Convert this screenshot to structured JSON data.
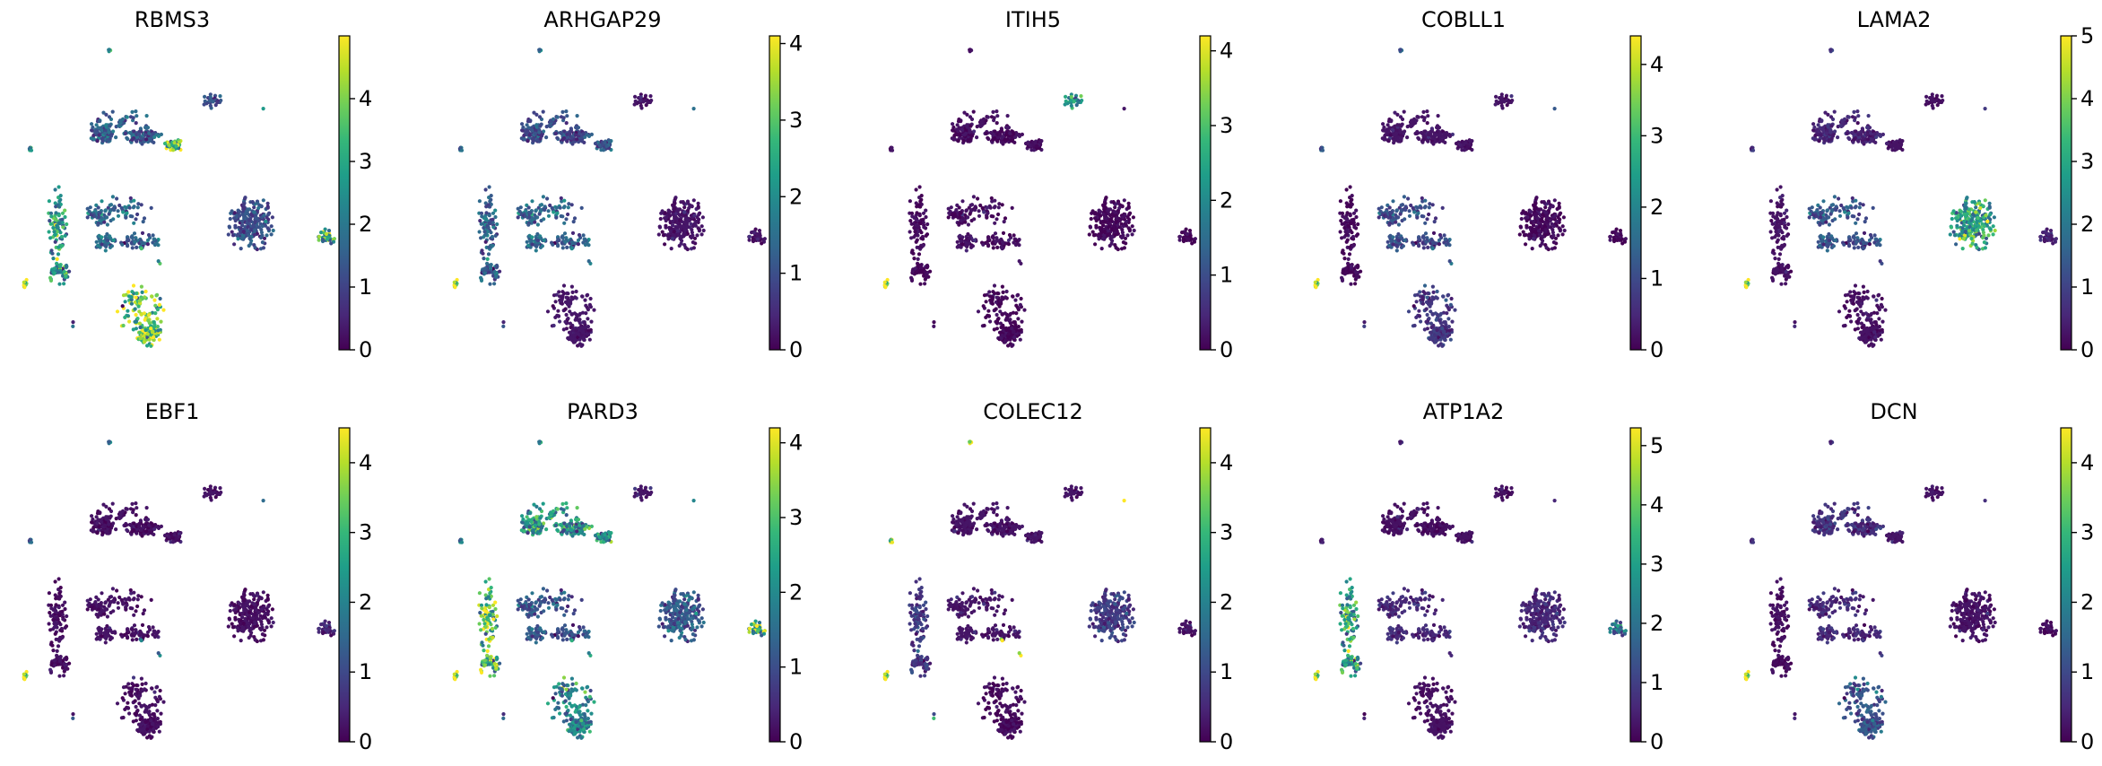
{
  "chart_data": {
    "type": "scatter",
    "description_kind": "umap_feature_plots",
    "colormap": "viridis",
    "colormap_stops": [
      "#440154",
      "#482878",
      "#3e4989",
      "#31688e",
      "#26828e",
      "#1f9e89",
      "#35b779",
      "#6ece58",
      "#b5de2b",
      "#fde725"
    ],
    "panels": [
      {
        "title": "RBMS3",
        "vmin": 0,
        "vmax": 5.0,
        "ticks": [
          "0",
          "1",
          "2",
          "3",
          "4"
        ],
        "expr": {
          "kidney": 2.8,
          "upper": 1.4,
          "upper_right": 3.5,
          "middle": 1.6,
          "right_big": 1.2,
          "bottom": 3.9,
          "small_right": 3.0,
          "top_small": 1.0,
          "left_tip": 4.6,
          "dots": 2.5
        }
      },
      {
        "title": "ARHGAP29",
        "vmin": 0,
        "vmax": 4.1,
        "ticks": [
          "0",
          "1",
          "2",
          "3",
          "4"
        ],
        "expr": {
          "kidney": 1.3,
          "upper": 0.9,
          "upper_right": 1.1,
          "middle": 1.3,
          "right_big": 0.3,
          "bottom": 0.4,
          "small_right": 0.3,
          "top_small": 0.2,
          "left_tip": 3.6,
          "dots": 1.4
        }
      },
      {
        "title": "ITIH5",
        "vmin": 0,
        "vmax": 4.2,
        "ticks": [
          "0",
          "1",
          "2",
          "3",
          "4"
        ],
        "expr": {
          "kidney": 0.1,
          "upper": 0.15,
          "upper_right": 0.1,
          "middle": 0.2,
          "right_big": 0.05,
          "bottom": 0.05,
          "small_right": 0.05,
          "top_small": 1.8,
          "left_tip": 4.0,
          "dots": 0.3
        }
      },
      {
        "title": "COBLL1",
        "vmin": 0,
        "vmax": 4.4,
        "ticks": [
          "0",
          "1",
          "2",
          "3",
          "4"
        ],
        "expr": {
          "kidney": 0.1,
          "upper": 0.4,
          "upper_right": 0.3,
          "middle": 1.0,
          "right_big": 0.1,
          "bottom": 0.7,
          "small_right": 0.1,
          "top_small": 0.2,
          "left_tip": 4.0,
          "dots": 1.2
        }
      },
      {
        "title": "LAMA2",
        "vmin": 0,
        "vmax": 5.0,
        "ticks": [
          "0",
          "1",
          "2",
          "3",
          "4",
          "5"
        ],
        "expr": {
          "kidney": 0.4,
          "upper": 0.5,
          "upper_right": 0.4,
          "middle": 1.3,
          "right_big": 2.9,
          "bottom": 0.3,
          "small_right": 0.5,
          "top_small": 0.2,
          "left_tip": 4.3,
          "dots": 0.8
        }
      },
      {
        "title": "EBF1",
        "vmin": 0,
        "vmax": 4.5,
        "ticks": [
          "0",
          "1",
          "2",
          "3",
          "4"
        ],
        "expr": {
          "kidney": 0.2,
          "upper": 0.2,
          "upper_right": 0.2,
          "middle": 0.3,
          "right_big": 0.2,
          "bottom": 0.2,
          "small_right": 0.5,
          "top_small": 0.2,
          "left_tip": 4.1,
          "dots": 1.5
        }
      },
      {
        "title": "PARD3",
        "vmin": 0,
        "vmax": 4.2,
        "ticks": [
          "0",
          "1",
          "2",
          "3",
          "4"
        ],
        "expr": {
          "kidney": 3.2,
          "upper": 2.1,
          "upper_right": 2.0,
          "middle": 1.1,
          "right_big": 1.2,
          "bottom": 1.9,
          "small_right": 2.9,
          "top_small": 0.4,
          "left_tip": 3.7,
          "dots": 1.8
        }
      },
      {
        "title": "COLEC12",
        "vmin": 0,
        "vmax": 4.5,
        "ticks": [
          "0",
          "1",
          "2",
          "3",
          "4"
        ],
        "expr": {
          "kidney": 0.8,
          "upper": 0.3,
          "upper_right": 0.3,
          "middle": 0.4,
          "right_big": 0.8,
          "bottom": 0.1,
          "small_right": 0.4,
          "top_small": 0.3,
          "left_tip": 4.2,
          "dots": 4.0
        }
      },
      {
        "title": "ATP1A2",
        "vmin": 0,
        "vmax": 5.3,
        "ticks": [
          "0",
          "1",
          "2",
          "3",
          "4",
          "5"
        ],
        "expr": {
          "kidney": 3.2,
          "upper": 0.3,
          "upper_right": 0.3,
          "middle": 0.6,
          "right_big": 0.6,
          "bottom": 0.3,
          "small_right": 2.0,
          "top_small": 0.2,
          "left_tip": 4.4,
          "dots": 0.5
        }
      },
      {
        "title": "DCN",
        "vmin": 0,
        "vmax": 4.5,
        "ticks": [
          "0",
          "1",
          "2",
          "3",
          "4"
        ],
        "expr": {
          "kidney": 0.2,
          "upper": 0.6,
          "upper_right": 0.4,
          "middle": 0.5,
          "right_big": 0.3,
          "bottom": 1.2,
          "small_right": 0.2,
          "top_small": 0.2,
          "left_tip": 4.0,
          "dots": 0.6
        }
      }
    ]
  }
}
